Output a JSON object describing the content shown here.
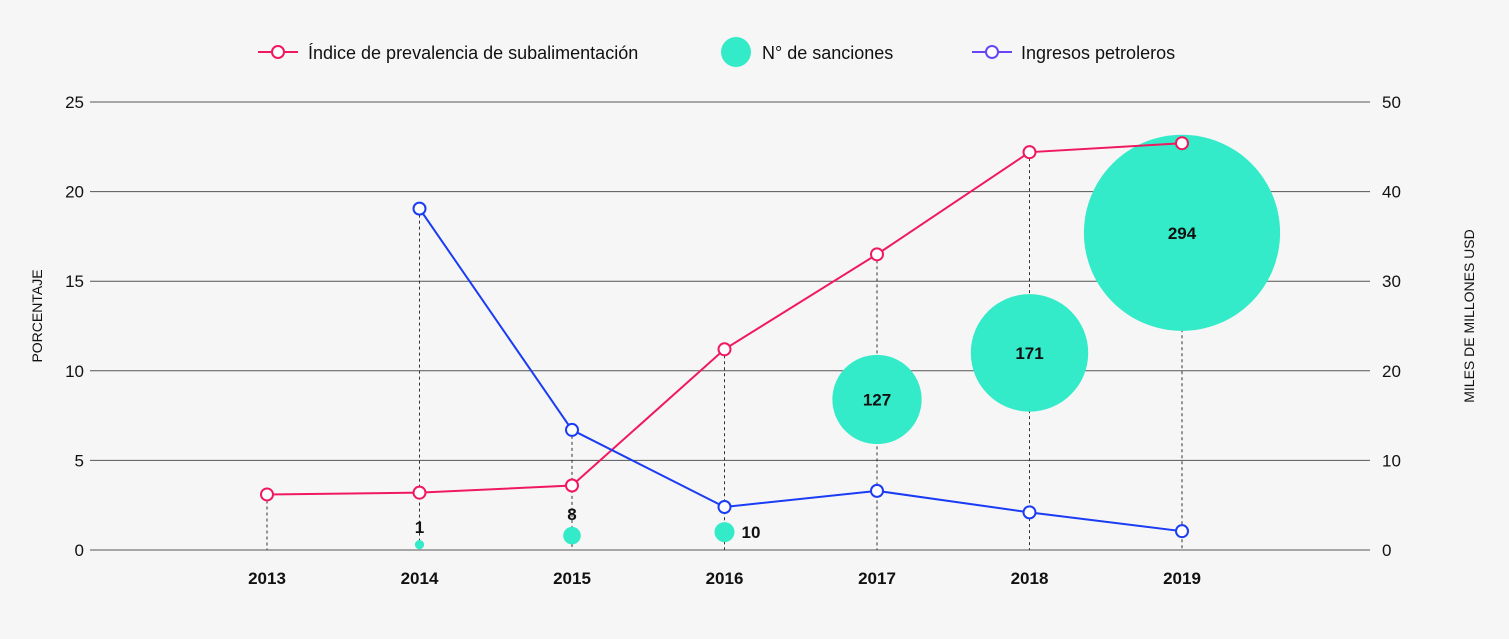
{
  "chart_data": {
    "type": "line",
    "title": "",
    "categories": [
      "2013",
      "2014",
      "2015",
      "2016",
      "2017",
      "2018",
      "2019"
    ],
    "ylabel_left": "PORCENTAJE",
    "ylabel_right": "MILES DE MILLONES USD",
    "ylim_left": [
      0,
      25
    ],
    "ylim_right": [
      0,
      50
    ],
    "yticks_left": [
      "0",
      "5",
      "10",
      "15",
      "20",
      "25"
    ],
    "yticks_right": [
      "0",
      "10",
      "20",
      "30",
      "40",
      "50"
    ],
    "grid": true,
    "legend_position": "top-center",
    "series": [
      {
        "name": "Índice de prevalencia de subalimentación",
        "axis": "left",
        "color": "#f0195f",
        "values": [
          3.1,
          3.2,
          3.6,
          11.2,
          16.5,
          22.2,
          22.7
        ]
      },
      {
        "name": "Ingresos petroleros",
        "axis": "right",
        "color": "#1a3cf5",
        "legend_color": "#6a45f5",
        "values": [
          null,
          38.1,
          13.4,
          4.8,
          6.6,
          4.2,
          2.1
        ]
      }
    ],
    "bubbles": {
      "name": "N° de sanciones",
      "color": "#34ebc9",
      "values": [
        null,
        1,
        8,
        10,
        127,
        171,
        294
      ],
      "labels": [
        "",
        "1",
        "8",
        "10",
        "127",
        "171",
        "294"
      ],
      "y_left": [
        null,
        0.3,
        0.8,
        1.0,
        8.4,
        11.0,
        17.7
      ]
    }
  }
}
